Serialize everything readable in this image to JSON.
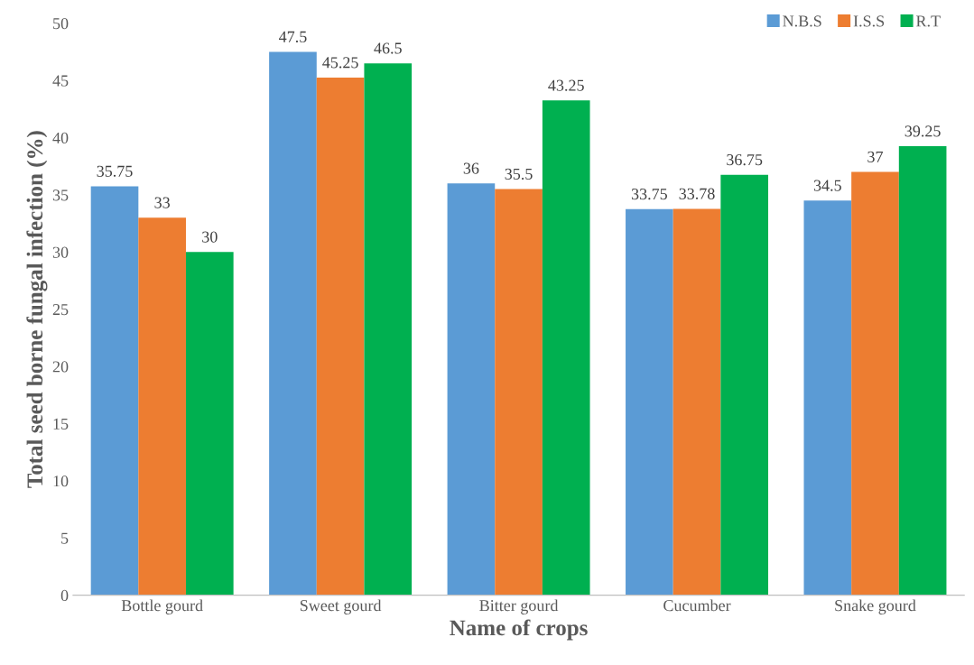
{
  "chart_data": {
    "type": "bar",
    "xlabel": "Name of crops",
    "ylabel": "Total seed borne fungal infection (%)",
    "categories": [
      "Bottle gourd",
      "Sweet gourd",
      "Bitter gourd",
      "Cucumber",
      "Snake gourd"
    ],
    "series": [
      {
        "name": "N.B.S",
        "color": "#5b9bd5",
        "values": [
          35.75,
          47.5,
          36,
          33.75,
          34.5
        ]
      },
      {
        "name": "I.S.S",
        "color": "#ed7d31",
        "values": [
          33,
          45.25,
          35.5,
          33.78,
          37
        ]
      },
      {
        "name": "R.T",
        "color": "#00b050",
        "values": [
          30,
          46.5,
          43.25,
          36.75,
          39.25
        ]
      }
    ],
    "ylim": [
      0,
      50
    ],
    "yticks": [
      0,
      5,
      10,
      15,
      20,
      25,
      30,
      35,
      40,
      45,
      50
    ],
    "data_labels": true,
    "legend": "top right",
    "grid": false
  }
}
